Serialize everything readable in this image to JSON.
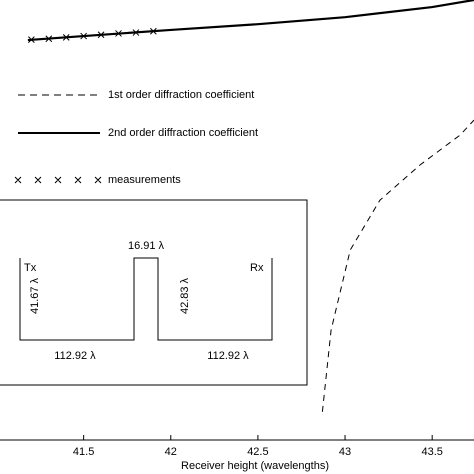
{
  "chart_data": {
    "type": "line",
    "x_label": "Receiver height (wavelengths)",
    "xlim": [
      41.02,
      43.74
    ],
    "xticks": [
      41.5,
      42,
      42.5,
      43,
      43.5
    ],
    "ylim": [
      0,
      100
    ],
    "series": [
      {
        "name": "1st order diffraction coefficient",
        "color": "#000000",
        "style": "dashed",
        "x": [
          42.87,
          42.92,
          43.03,
          43.2,
          43.43,
          43.66,
          43.74
        ],
        "values": [
          6.4,
          25,
          43.2,
          54.5,
          62.5,
          69.3,
          72.7
        ]
      },
      {
        "name": "2nd order diffraction coefficient",
        "color": "#000000",
        "style": "solid",
        "x": [
          41.18,
          41.5,
          42,
          42.5,
          43,
          43.5,
          43.74
        ],
        "values": [
          90.9,
          91.8,
          93.2,
          94.5,
          96.1,
          98.4,
          100
        ]
      },
      {
        "name": "measurements",
        "color": "#000000",
        "style": "markers",
        "x": [
          41.2,
          41.3,
          41.4,
          41.5,
          41.6,
          41.7,
          41.8,
          41.9
        ],
        "values": [
          91,
          91.2,
          91.5,
          91.8,
          92.1,
          92.4,
          92.6,
          92.9
        ]
      }
    ],
    "annotations": {
      "tx": "Tx",
      "rx": "Rx",
      "tx_height": "41.67 λ",
      "obstacle_width": "16.91 λ",
      "rx_height": "42.83 λ",
      "left_distance": "112.92 λ",
      "right_distance": "112.92 λ"
    }
  }
}
